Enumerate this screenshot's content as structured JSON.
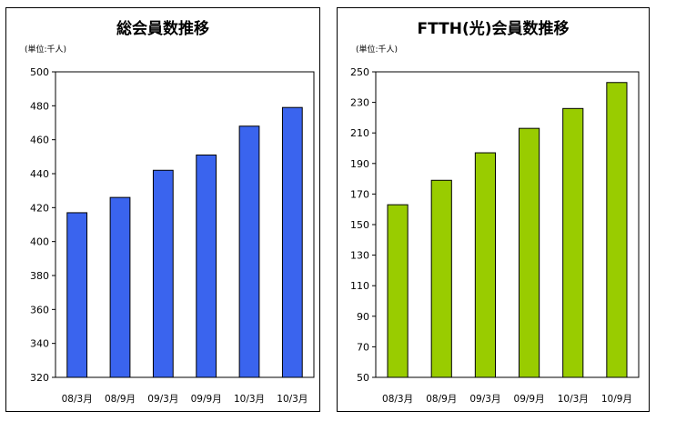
{
  "chart_data": [
    {
      "type": "bar",
      "title": "総会員数推移",
      "unit": "(単位:千人)",
      "categories": [
        "08/3月",
        "08/9月",
        "09/3月",
        "09/9月",
        "10/3月",
        "10/3月"
      ],
      "values": [
        417,
        426,
        442,
        451,
        468,
        479
      ],
      "ylim": [
        320,
        500
      ],
      "yticks": [
        320,
        340,
        360,
        380,
        400,
        420,
        440,
        460,
        480,
        500
      ],
      "bar_color": "#3a64ee",
      "grid": false,
      "xlabel": "",
      "ylabel": ""
    },
    {
      "type": "bar",
      "title": "FTTH(光)会員数推移",
      "unit": "(単位:千人)",
      "categories": [
        "08/3月",
        "08/9月",
        "09/3月",
        "09/9月",
        "10/3月",
        "10/9月"
      ],
      "values": [
        163,
        179,
        197,
        213,
        226,
        243
      ],
      "ylim": [
        50,
        250
      ],
      "yticks": [
        50,
        70,
        90,
        110,
        130,
        150,
        170,
        190,
        210,
        230,
        250
      ],
      "bar_color": "#99cc00",
      "grid": false,
      "xlabel": "",
      "ylabel": ""
    }
  ]
}
